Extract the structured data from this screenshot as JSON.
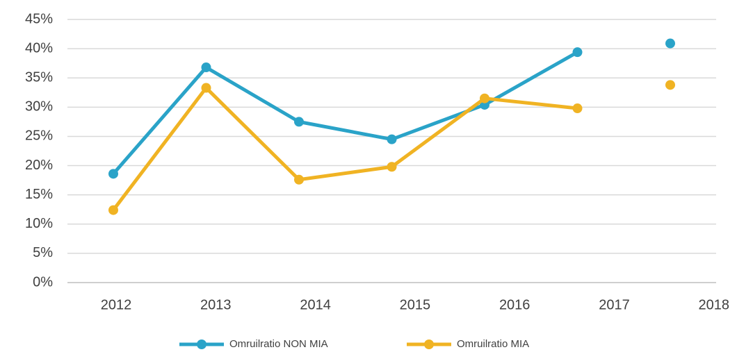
{
  "chart_data": {
    "type": "line",
    "categories": [
      "2012",
      "2013",
      "2014",
      "2015",
      "2016",
      "2017",
      "2018"
    ],
    "series": [
      {
        "name": "Omruilratio NON MIA",
        "color": "#2aa3c8",
        "values": [
          18.6,
          36.8,
          27.5,
          24.5,
          30.4,
          39.4,
          40.9
        ]
      },
      {
        "name": "Omruilratio MIA",
        "color": "#f0b323",
        "values": [
          12.4,
          33.3,
          17.6,
          19.8,
          31.5,
          29.8,
          33.8
        ]
      }
    ],
    "ylim": [
      0,
      45
    ],
    "yticks": [
      {
        "value": 0,
        "label": "0%"
      },
      {
        "value": 5,
        "label": "5%"
      },
      {
        "value": 10,
        "label": "10%"
      },
      {
        "value": 15,
        "label": "15%"
      },
      {
        "value": 20,
        "label": "20%"
      },
      {
        "value": 25,
        "label": "25%"
      },
      {
        "value": 30,
        "label": "30%"
      },
      {
        "value": 35,
        "label": "35%"
      },
      {
        "value": 40,
        "label": "40%"
      },
      {
        "value": 45,
        "label": "45%"
      }
    ],
    "grid": true,
    "legend": "bottom"
  }
}
